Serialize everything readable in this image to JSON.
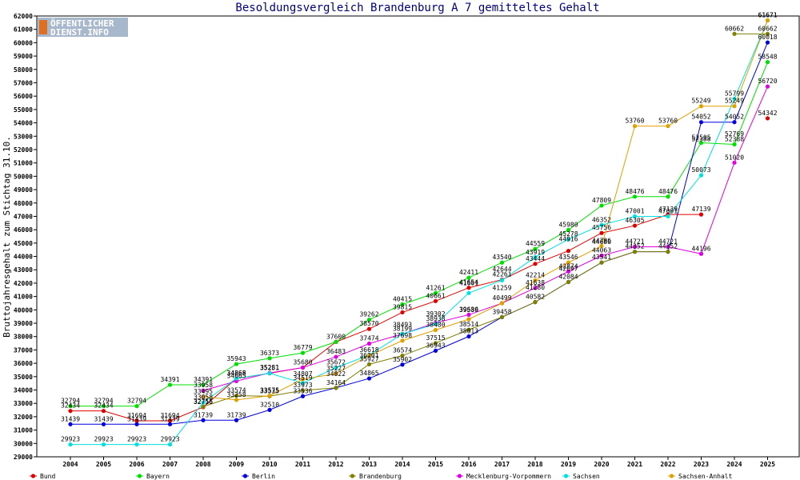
{
  "logo": {
    "line1": "ÖFFENTLICHER",
    "line2": "DIENST.INFO"
  },
  "chart_data": {
    "type": "line",
    "title": "Besoldungsvergleich Brandenburg A 7 gemitteltes Gehalt",
    "xlabel": "",
    "ylabel": "Bruttojahresgehalt zum Stichtag 31.10.",
    "x": [
      "2004",
      "2005",
      "2006",
      "2007",
      "2008",
      "2009",
      "2010",
      "2011",
      "2012",
      "2013",
      "2014",
      "2015",
      "2016",
      "2017",
      "2018",
      "2019",
      "2020",
      "2021",
      "2022",
      "2023",
      "2024",
      "2025"
    ],
    "ylim": [
      29000,
      62000
    ],
    "ytick_step": 1000,
    "grid": false,
    "legend_position": "bottom",
    "series": [
      {
        "name": "Bund",
        "color": "#e00000",
        "values": [
          32434,
          32434,
          31694,
          31694,
          32716,
          34865,
          35251,
          35680,
          37600,
          38570,
          39815,
          40661,
          41654,
          42261,
          43444,
          44416,
          45756,
          46305,
          47139,
          47139,
          null,
          54342
        ]
      },
      {
        "name": "Bayern",
        "color": "#00e000",
        "values": [
          32794,
          32794,
          32794,
          34391,
          34391,
          35943,
          36373,
          36779,
          37600,
          39262,
          40415,
          41261,
          42411,
          43540,
          44559,
          45980,
          47809,
          48476,
          48476,
          52505,
          52388,
          58548
        ]
      },
      {
        "name": "Berlin",
        "color": "#0000e0",
        "values": [
          31439,
          31439,
          31439,
          31439,
          31739,
          31739,
          32510,
          33536,
          34164,
          34865,
          35902,
          36943,
          38013,
          39458,
          40582,
          42084,
          43541,
          44352,
          44352,
          54052,
          54052,
          60018
        ]
      },
      {
        "name": "Brandenburg",
        "color": "#808000",
        "values": [
          null,
          null,
          null,
          null,
          32755,
          33574,
          33535,
          33973,
          34164,
          35927,
          36574,
          37515,
          38514,
          39458,
          40582,
          42084,
          43541,
          44352,
          44352,
          null,
          60662,
          60662
        ]
      },
      {
        "name": "Mecklenburg-Vorpommern",
        "color": "#e000e0",
        "values": [
          null,
          null,
          null,
          null,
          33958,
          34665,
          35281,
          35680,
          36483,
          37474,
          38193,
          39028,
          39636,
          40499,
          41638,
          42874,
          44063,
          44721,
          44721,
          44196,
          51020,
          56720
        ]
      },
      {
        "name": "Sachsen",
        "color": "#00e0e0",
        "values": [
          29923,
          29923,
          29923,
          29923,
          33058,
          34868,
          35251,
          34519,
          35672,
          36618,
          38199,
          38938,
          41259,
          42214,
          43944,
          45278,
          46352,
          47001,
          47001,
          50073,
          55799,
          61671
        ]
      },
      {
        "name": "Sachsen-Anhalt",
        "color": "#e0a000",
        "values": [
          null,
          null,
          null,
          null,
          33495,
          33258,
          33575,
          34807,
          35227,
          36574,
          37698,
          38493,
          39302,
          40499,
          42214,
          43546,
          44786,
          53760,
          53760,
          55249,
          55249,
          61671
        ]
      }
    ],
    "data_labels": [
      {
        "text": "32794",
        "x": "2004",
        "y": 32794
      },
      {
        "text": "32434",
        "x": "2004",
        "y": 32434
      },
      {
        "text": "31439",
        "x": "2004",
        "y": 31439
      },
      {
        "text": "29923",
        "x": "2004",
        "y": 29923
      },
      {
        "text": "32794",
        "x": "2005",
        "y": 32794
      },
      {
        "text": "32434",
        "x": "2005",
        "y": 32434
      },
      {
        "text": "31439",
        "x": "2005",
        "y": 31439
      },
      {
        "text": "29923",
        "x": "2005",
        "y": 29923
      },
      {
        "text": "32794",
        "x": "2006",
        "y": 32794
      },
      {
        "text": "31694",
        "x": "2006",
        "y": 31694
      },
      {
        "text": "31439",
        "x": "2006",
        "y": 31439
      },
      {
        "text": "29923",
        "x": "2006",
        "y": 29923
      },
      {
        "text": "34391",
        "x": "2007",
        "y": 34391
      },
      {
        "text": "31694",
        "x": "2007",
        "y": 31694
      },
      {
        "text": "31439",
        "x": "2007",
        "y": 31439
      },
      {
        "text": "29923",
        "x": "2007",
        "y": 29923
      },
      {
        "text": "34391",
        "x": "2008",
        "y": 34391
      },
      {
        "text": "33958",
        "x": "2008",
        "y": 33958
      },
      {
        "text": "33495",
        "x": "2008",
        "y": 33495
      },
      {
        "text": "33058",
        "x": "2008",
        "y": 33058
      },
      {
        "text": "32755",
        "x": "2008",
        "y": 32755
      },
      {
        "text": "32716",
        "x": "2008",
        "y": 32716
      },
      {
        "text": "31739",
        "x": "2008",
        "y": 31739
      },
      {
        "text": "35943",
        "x": "2009",
        "y": 35943
      },
      {
        "text": "34868",
        "x": "2009",
        "y": 34868
      },
      {
        "text": "34865",
        "x": "2009",
        "y": 34865
      },
      {
        "text": "34665",
        "x": "2009",
        "y": 34665
      },
      {
        "text": "33574",
        "x": "2009",
        "y": 33574
      },
      {
        "text": "33258",
        "x": "2009",
        "y": 33258
      },
      {
        "text": "31739",
        "x": "2009",
        "y": 31739
      },
      {
        "text": "36373",
        "x": "2010",
        "y": 36373
      },
      {
        "text": "35281",
        "x": "2010",
        "y": 35281
      },
      {
        "text": "35251",
        "x": "2010",
        "y": 35251
      },
      {
        "text": "33575",
        "x": "2010",
        "y": 33575
      },
      {
        "text": "33535",
        "x": "2010",
        "y": 33535
      },
      {
        "text": "32510",
        "x": "2010",
        "y": 32510
      },
      {
        "text": "36779",
        "x": "2011",
        "y": 36779
      },
      {
        "text": "35680",
        "x": "2011",
        "y": 35680
      },
      {
        "text": "34807",
        "x": "2011",
        "y": 34807
      },
      {
        "text": "34519",
        "x": "2011",
        "y": 34519
      },
      {
        "text": "33973",
        "x": "2011",
        "y": 33973
      },
      {
        "text": "33536",
        "x": "2011",
        "y": 33536
      },
      {
        "text": "37600",
        "x": "2012",
        "y": 37600
      },
      {
        "text": "36483",
        "x": "2012",
        "y": 36483
      },
      {
        "text": "35672",
        "x": "2012",
        "y": 35672
      },
      {
        "text": "35227",
        "x": "2012",
        "y": 35227
      },
      {
        "text": "34822",
        "x": "2012",
        "y": 34822
      },
      {
        "text": "34164",
        "x": "2012",
        "y": 34164
      },
      {
        "text": "39262",
        "x": "2013",
        "y": 39262
      },
      {
        "text": "38570",
        "x": "2013",
        "y": 38570
      },
      {
        "text": "37474",
        "x": "2013",
        "y": 37474
      },
      {
        "text": "36618",
        "x": "2013",
        "y": 36618
      },
      {
        "text": "36201",
        "x": "2013",
        "y": 36201
      },
      {
        "text": "35927",
        "x": "2013",
        "y": 35927
      },
      {
        "text": "34865",
        "x": "2013",
        "y": 34865
      },
      {
        "text": "40415",
        "x": "2014",
        "y": 40415
      },
      {
        "text": "39815",
        "x": "2014",
        "y": 39815
      },
      {
        "text": "38493",
        "x": "2014",
        "y": 38493
      },
      {
        "text": "38199",
        "x": "2014",
        "y": 38199
      },
      {
        "text": "37698",
        "x": "2014",
        "y": 37698
      },
      {
        "text": "36574",
        "x": "2014",
        "y": 36574
      },
      {
        "text": "35902",
        "x": "2014",
        "y": 35902
      },
      {
        "text": "41261",
        "x": "2015",
        "y": 41261
      },
      {
        "text": "40661",
        "x": "2015",
        "y": 40661
      },
      {
        "text": "39302",
        "x": "2015",
        "y": 39302
      },
      {
        "text": "38938",
        "x": "2015",
        "y": 38938
      },
      {
        "text": "38480",
        "x": "2015",
        "y": 38480
      },
      {
        "text": "37515",
        "x": "2015",
        "y": 37515
      },
      {
        "text": "36943",
        "x": "2015",
        "y": 36943
      },
      {
        "text": "42411",
        "x": "2016",
        "y": 42411
      },
      {
        "text": "41654",
        "x": "2016",
        "y": 41654
      },
      {
        "text": "41601",
        "x": "2016",
        "y": 41601
      },
      {
        "text": "39636",
        "x": "2016",
        "y": 39636
      },
      {
        "text": "39589",
        "x": "2016",
        "y": 39589
      },
      {
        "text": "38514",
        "x": "2016",
        "y": 38514
      },
      {
        "text": "38013",
        "x": "2016",
        "y": 38013
      },
      {
        "text": "43540",
        "x": "2017",
        "y": 43540
      },
      {
        "text": "42644",
        "x": "2017",
        "y": 42644
      },
      {
        "text": "42261",
        "x": "2017",
        "y": 42261
      },
      {
        "text": "41259",
        "x": "2017",
        "y": 41259
      },
      {
        "text": "40499",
        "x": "2017",
        "y": 40499
      },
      {
        "text": "39458",
        "x": "2017",
        "y": 39458
      },
      {
        "text": "44559",
        "x": "2018",
        "y": 44559
      },
      {
        "text": "43919",
        "x": "2018",
        "y": 43919
      },
      {
        "text": "43444",
        "x": "2018",
        "y": 43444
      },
      {
        "text": "42214",
        "x": "2018",
        "y": 42214
      },
      {
        "text": "41638",
        "x": "2018",
        "y": 41638
      },
      {
        "text": "41280",
        "x": "2018",
        "y": 41280
      },
      {
        "text": "40582",
        "x": "2018",
        "y": 40582
      },
      {
        "text": "45980",
        "x": "2019",
        "y": 45980
      },
      {
        "text": "45278",
        "x": "2019",
        "y": 45278
      },
      {
        "text": "44916",
        "x": "2019",
        "y": 44916
      },
      {
        "text": "43546",
        "x": "2019",
        "y": 43546
      },
      {
        "text": "42874",
        "x": "2019",
        "y": 42874
      },
      {
        "text": "42697",
        "x": "2019",
        "y": 42697
      },
      {
        "text": "42084",
        "x": "2019",
        "y": 42084
      },
      {
        "text": "47809",
        "x": "2020",
        "y": 47809
      },
      {
        "text": "46352",
        "x": "2020",
        "y": 46352
      },
      {
        "text": "45756",
        "x": "2020",
        "y": 45756
      },
      {
        "text": "44786",
        "x": "2020",
        "y": 44786
      },
      {
        "text": "44680",
        "x": "2020",
        "y": 44680
      },
      {
        "text": "44063",
        "x": "2020",
        "y": 44063
      },
      {
        "text": "43541",
        "x": "2020",
        "y": 43541
      },
      {
        "text": "53760",
        "x": "2021",
        "y": 53760
      },
      {
        "text": "48476",
        "x": "2021",
        "y": 48476
      },
      {
        "text": "47001",
        "x": "2021",
        "y": 47001
      },
      {
        "text": "46305",
        "x": "2021",
        "y": 46305
      },
      {
        "text": "44721",
        "x": "2021",
        "y": 44721
      },
      {
        "text": "44352",
        "x": "2021",
        "y": 44352
      },
      {
        "text": "53760",
        "x": "2022",
        "y": 53760
      },
      {
        "text": "48476",
        "x": "2022",
        "y": 48476
      },
      {
        "text": "47139",
        "x": "2022",
        "y": 47139
      },
      {
        "text": "47001",
        "x": "2022",
        "y": 47001
      },
      {
        "text": "44721",
        "x": "2022",
        "y": 44721
      },
      {
        "text": "44352",
        "x": "2022",
        "y": 44352
      },
      {
        "text": "55249",
        "x": "2023",
        "y": 55249
      },
      {
        "text": "54052",
        "x": "2023",
        "y": 54052
      },
      {
        "text": "52505",
        "x": "2023",
        "y": 52505
      },
      {
        "text": "52388",
        "x": "2023",
        "y": 52388
      },
      {
        "text": "50073",
        "x": "2023",
        "y": 50073
      },
      {
        "text": "47139",
        "x": "2023",
        "y": 47139
      },
      {
        "text": "44196",
        "x": "2023",
        "y": 44196
      },
      {
        "text": "60662",
        "x": "2024",
        "y": 60662
      },
      {
        "text": "55799",
        "x": "2024",
        "y": 55799
      },
      {
        "text": "55249",
        "x": "2024",
        "y": 55249
      },
      {
        "text": "54052",
        "x": "2024",
        "y": 54052
      },
      {
        "text": "52769",
        "x": "2024",
        "y": 52769
      },
      {
        "text": "52388",
        "x": "2024",
        "y": 52388
      },
      {
        "text": "51020",
        "x": "2024",
        "y": 51020
      },
      {
        "text": "61671",
        "x": "2025",
        "y": 61671
      },
      {
        "text": "61671",
        "x": "2025",
        "y": 61671
      },
      {
        "text": "60662",
        "x": "2025",
        "y": 60662
      },
      {
        "text": "60018",
        "x": "2025",
        "y": 60018
      },
      {
        "text": "58548",
        "x": "2025",
        "y": 58548
      },
      {
        "text": "56720",
        "x": "2025",
        "y": 56720
      },
      {
        "text": "54342",
        "x": "2025",
        "y": 54342
      }
    ]
  }
}
